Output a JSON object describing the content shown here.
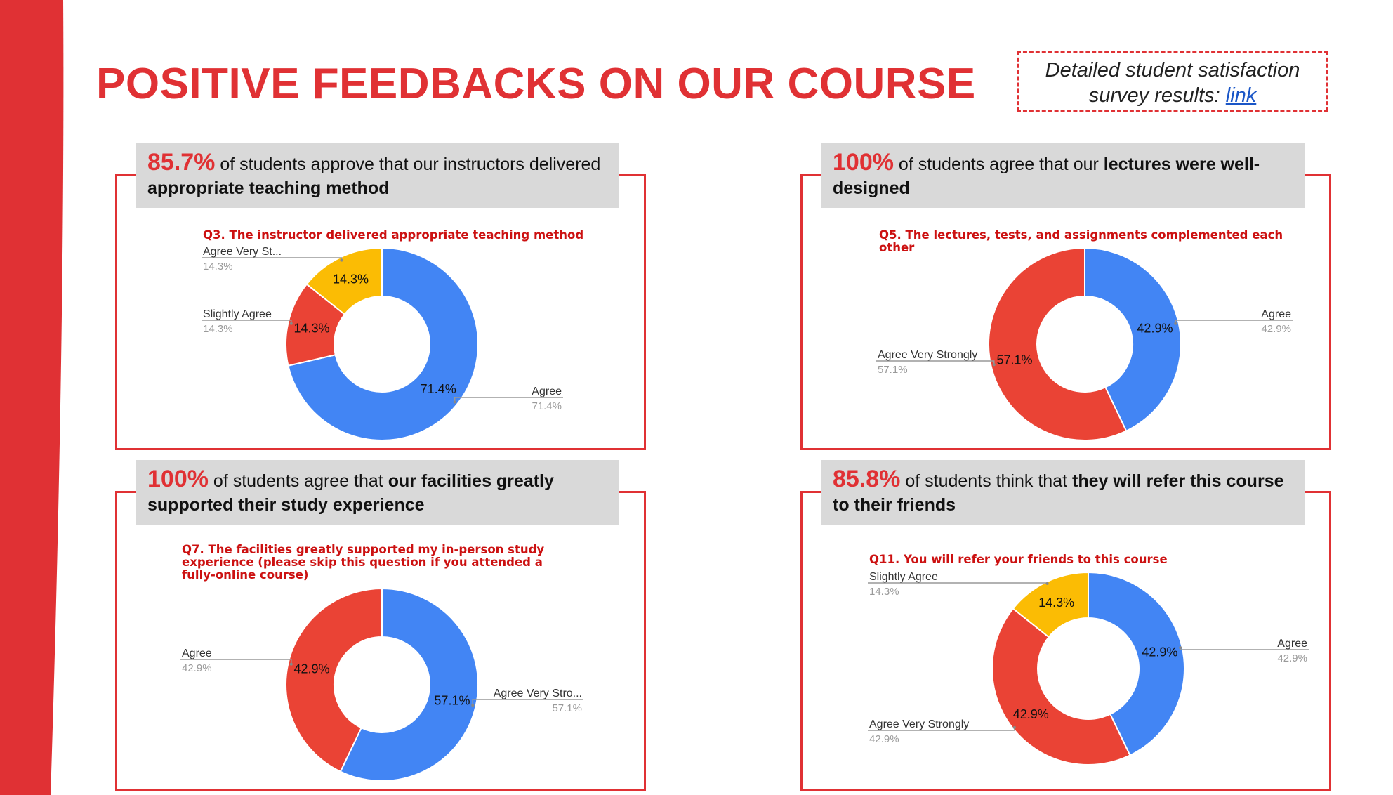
{
  "page": {
    "title": "POSITIVE FEEDBACKS ON OUR COURSE",
    "survey_text": "Detailed student satisfaction survey results:",
    "survey_link": "link",
    "colors": {
      "accent": "#e03134",
      "blue": "#4285f4",
      "red": "#ea4335",
      "yellow": "#fbbc04"
    }
  },
  "panels": [
    {
      "pct": "85.7%",
      "text1": " of students approve that our instructors delivered ",
      "bold1": "appropriate teaching method",
      "text2": "",
      "bold2": ""
    },
    {
      "pct": "100%",
      "text1": " of students agree that our ",
      "bold1": "lectures were well-designed",
      "text2": "",
      "bold2": ""
    },
    {
      "pct": "100%",
      "text1": " of students agree that ",
      "bold1": "our facilities greatly supported their study experience",
      "text2": "",
      "bold2": ""
    },
    {
      "pct": "85.8%",
      "text1": " of students think that ",
      "bold1": "they will refer this course to their friends",
      "text2": "",
      "bold2": ""
    }
  ],
  "chart_data": [
    {
      "type": "pie",
      "title": "Q3. The instructor delivered appropriate teaching method",
      "slices": [
        {
          "label": "Agree",
          "value": 71.4,
          "display": "71.4%",
          "color": "#4285f4"
        },
        {
          "label": "Slightly Agree",
          "legend_label": "Slightly Agree",
          "value": 14.3,
          "display": "14.3%",
          "color": "#ea4335"
        },
        {
          "label": "Agree Very Strongly",
          "legend_label": "Agree Very St...",
          "value": 14.3,
          "display": "14.3%",
          "color": "#fbbc04"
        }
      ]
    },
    {
      "type": "pie",
      "title": "Q5. The lectures, tests, and assignments complemented each other",
      "slices": [
        {
          "label": "Agree",
          "value": 42.9,
          "display": "42.9%",
          "color": "#4285f4"
        },
        {
          "label": "Agree Very Strongly",
          "legend_label": "Agree Very Strongly",
          "value": 57.1,
          "display": "57.1%",
          "color": "#ea4335"
        }
      ]
    },
    {
      "type": "pie",
      "title": "Q7. The facilities greatly supported my in-person study experience (please skip this question if you attended a fully-online course)",
      "slices": [
        {
          "label": "Agree Very Strongly",
          "legend_label": "Agree Very Stro...",
          "value": 57.1,
          "display": "57.1%",
          "color": "#4285f4"
        },
        {
          "label": "Agree",
          "legend_label": "Agree",
          "value": 42.9,
          "display": "42.9%",
          "color": "#ea4335"
        }
      ]
    },
    {
      "type": "pie",
      "title": "Q11. You will refer your friends to this course",
      "slices": [
        {
          "label": "Agree",
          "value": 42.9,
          "display": "42.9%",
          "color": "#4285f4"
        },
        {
          "label": "Agree Very Strongly",
          "legend_label": "Agree Very Strongly",
          "value": 42.9,
          "display": "42.9%",
          "color": "#ea4335"
        },
        {
          "label": "Slightly Agree",
          "legend_label": "Slightly Agree",
          "value": 14.3,
          "display": "14.3%",
          "color": "#fbbc04"
        }
      ]
    }
  ]
}
